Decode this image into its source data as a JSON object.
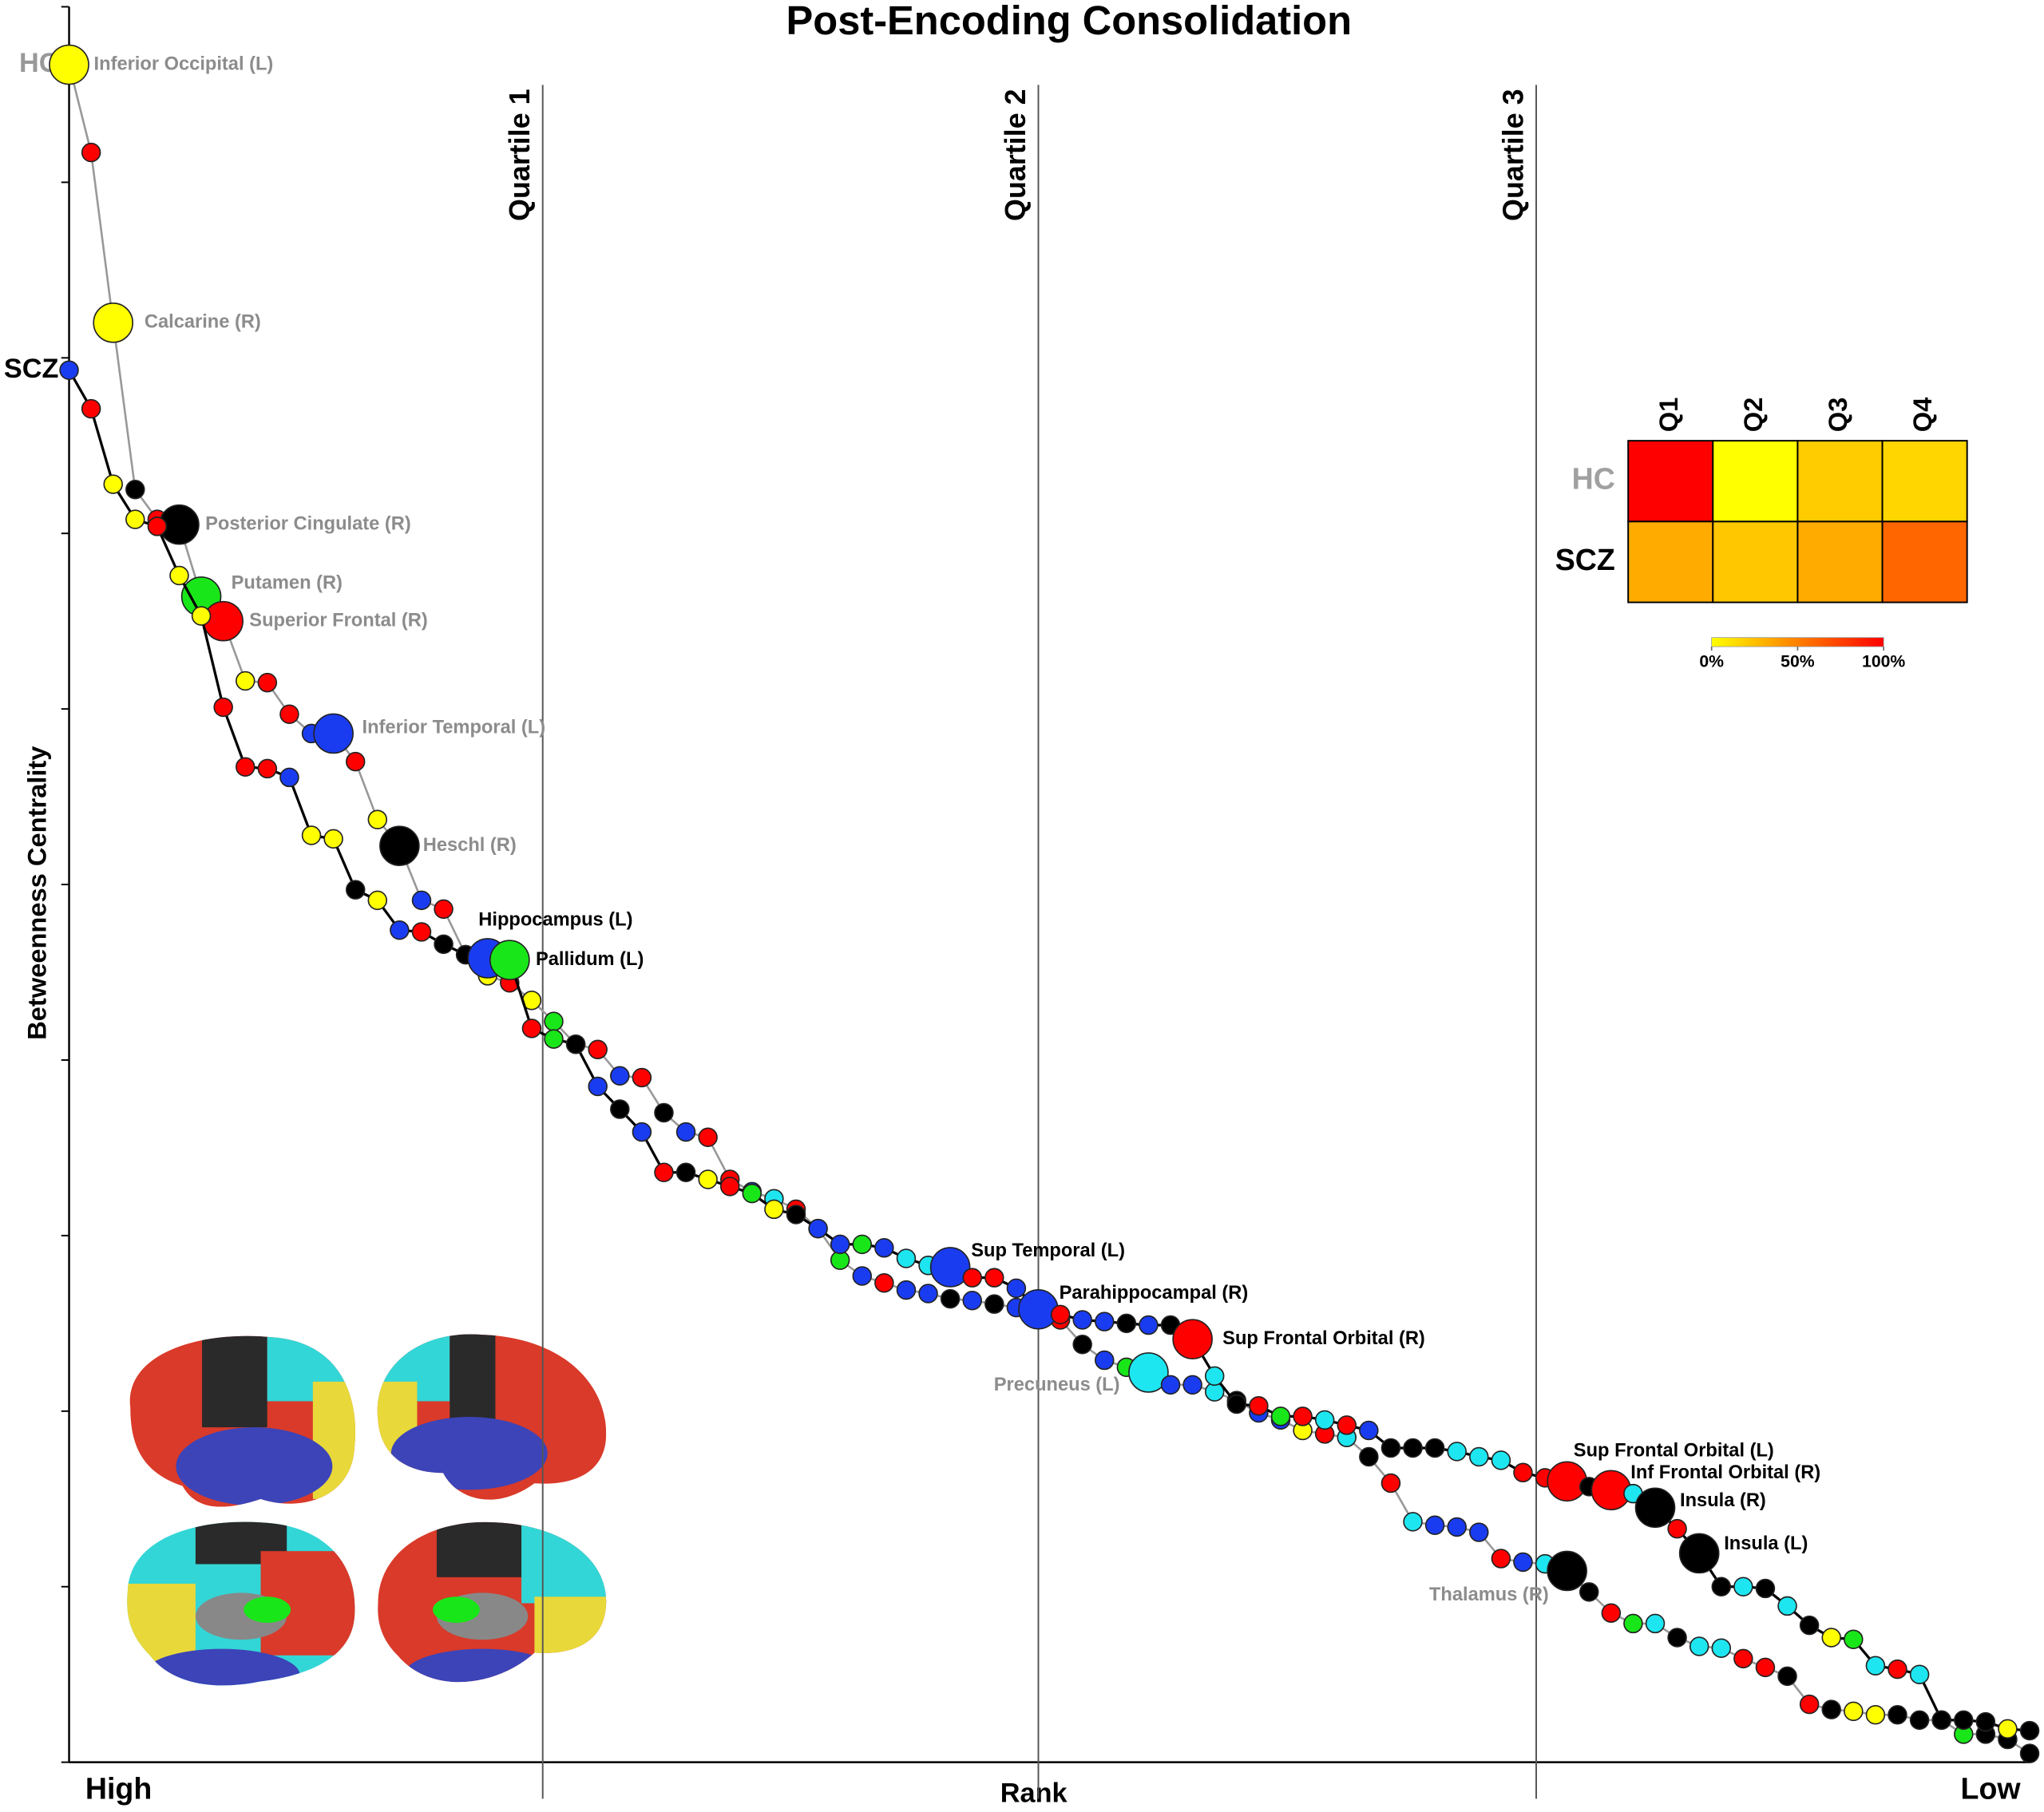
{
  "chart_data": [
    {
      "type": "line",
      "title": "Post-Encoding Consolidation",
      "y_label": "Betweenness Centrality",
      "x_label": "Rank",
      "x_start_label": "High",
      "x_end_label": "Low",
      "xlim": [
        1,
        90
      ],
      "ylim": [
        0,
        1000
      ],
      "yticks": [
        0,
        100,
        200,
        300,
        400,
        500,
        600,
        700,
        800,
        900,
        1000
      ],
      "quartiles": [
        {
          "label": "Quartile 1",
          "rank": 22.5
        },
        {
          "label": "Quartile 2",
          "rank": 45
        },
        {
          "label": "Quartile 3",
          "rank": 67.6
        }
      ],
      "series": [
        {
          "name": "HC",
          "color": "#999999",
          "values": [
            967,
            917,
            820,
            725,
            708,
            705,
            664,
            650,
            616,
            615,
            597,
            586,
            586,
            570,
            537,
            522,
            491,
            486,
            460,
            448,
            444,
            434,
            422,
            409,
            406,
            391,
            390,
            370,
            359,
            356,
            332,
            325,
            321,
            315,
            304,
            286,
            277,
            273,
            269,
            267,
            264,
            263,
            261,
            259,
            256,
            252,
            238,
            229,
            225,
            222,
            215,
            215,
            211,
            206,
            199,
            195,
            189,
            187,
            185,
            174,
            159,
            137,
            135,
            134,
            131,
            116,
            114,
            113,
            109,
            97,
            85,
            79,
            79,
            71,
            66,
            65,
            59,
            54,
            49,
            33,
            30,
            29,
            27,
            27,
            24,
            24,
            16,
            16,
            13,
            5
          ],
          "point_colors": [
            "#ffff00",
            "#ff0000",
            "#ffff00",
            "#000000",
            "#ff0000",
            "#000000",
            "#19e619",
            "#ff0000",
            "#ffff00",
            "#ff0000",
            "#ff0000",
            "#1a3cf0",
            "#1a3cf0",
            "#ff0000",
            "#ffff00",
            "#000000",
            "#1a3cf0",
            "#ff0000",
            "#000000",
            "#ffff00",
            "#ff0000",
            "#ffff00",
            "#19e619",
            "#000000",
            "#ff0000",
            "#1a3cf0",
            "#ff0000",
            "#000000",
            "#1a3cf0",
            "#ff0000",
            "#ff0000",
            "#1a3cf0",
            "#1ee6f0",
            "#ff0000",
            "#1a3cf0",
            "#19e619",
            "#1a3cf0",
            "#ff0000",
            "#1a3cf0",
            "#1a3cf0",
            "#000000",
            "#1a3cf0",
            "#000000",
            "#1a3cf0",
            "#1a3cf0",
            "#ff0000",
            "#000000",
            "#1a3cf0",
            "#19e619",
            "#1ee6f0",
            "#1a3cf0",
            "#1a3cf0",
            "#1ee6f0",
            "#000000",
            "#1a3cf0",
            "#1a3cf0",
            "#ffff00",
            "#ff0000",
            "#1ee6f0",
            "#000000",
            "#ff0000",
            "#1ee6f0",
            "#1a3cf0",
            "#1a3cf0",
            "#1a3cf0",
            "#ff0000",
            "#1a3cf0",
            "#1ee6f0",
            "#000000",
            "#000000",
            "#ff0000",
            "#19e619",
            "#1ee6f0",
            "#000000",
            "#1ee6f0",
            "#1ee6f0",
            "#ff0000",
            "#ff0000",
            "#000000",
            "#ff0000",
            "#000000",
            "#ffff00",
            "#ffff00",
            "#000000",
            "#000000",
            "#000000",
            "#19e619",
            "#000000",
            "#000000",
            "#000000"
          ],
          "labels": [
            "Inferior Occipital (L)",
            null,
            "Calcarine (R)",
            null,
            null,
            "Posterior Cingulate (R)",
            "Putamen (R)",
            "Superior Frontal (R)",
            null,
            null,
            null,
            null,
            "Inferior Temporal (L)",
            null,
            null,
            "Heschl (R)",
            null,
            null,
            null,
            null,
            null,
            null,
            null,
            null,
            null,
            null,
            null,
            null,
            null,
            null,
            null,
            null,
            null,
            null,
            null,
            null,
            null,
            null,
            null,
            null,
            null,
            null,
            null,
            null,
            null,
            null,
            null,
            null,
            null,
            "Precuneus (L)",
            null,
            null,
            null,
            null,
            null,
            null,
            null,
            null,
            null,
            null,
            null,
            null,
            null,
            null,
            null,
            null,
            null,
            null,
            "Thalamus (R)",
            null,
            null,
            null,
            null,
            null,
            null,
            null,
            null,
            null,
            null,
            null,
            null,
            null,
            null,
            null,
            null,
            null,
            null,
            null,
            null,
            null
          ]
        },
        {
          "name": "SCZ",
          "color": "#000000",
          "values": [
            793,
            771,
            728,
            708,
            704,
            676,
            653,
            601,
            567,
            566,
            561,
            528,
            526,
            497,
            491,
            474,
            473,
            466,
            460,
            458,
            457,
            418,
            412,
            409,
            385,
            372,
            359,
            336,
            336,
            332,
            328,
            324,
            315,
            312,
            304,
            295,
            295,
            293,
            287,
            283,
            282,
            276,
            276,
            270,
            258,
            255,
            252,
            251,
            250,
            249,
            249,
            241,
            220,
            204,
            203,
            197,
            197,
            195,
            192,
            189,
            179,
            179,
            179,
            177,
            174,
            172,
            165,
            162,
            160,
            157,
            155,
            153,
            145,
            133,
            119,
            100,
            100,
            99,
            89,
            78,
            71,
            70,
            55,
            53,
            50,
            24,
            24,
            23,
            19,
            18
          ],
          "point_colors": [
            "#1a3cf0",
            "#ff0000",
            "#ffff00",
            "#ffff00",
            "#ff0000",
            "#ffff00",
            "#ffff00",
            "#ff0000",
            "#ff0000",
            "#ff0000",
            "#1a3cf0",
            "#ffff00",
            "#ffff00",
            "#000000",
            "#ffff00",
            "#1a3cf0",
            "#ff0000",
            "#000000",
            "#000000",
            "#1a3cf0",
            "#19e619",
            "#ff0000",
            "#19e619",
            "#000000",
            "#1a3cf0",
            "#000000",
            "#1a3cf0",
            "#ff0000",
            "#000000",
            "#ffff00",
            "#ff0000",
            "#19e619",
            "#ffff00",
            "#000000",
            "#1a3cf0",
            "#1a3cf0",
            "#19e619",
            "#1a3cf0",
            "#1ee6f0",
            "#1ee6f0",
            "#1a3cf0",
            "#ff0000",
            "#ff0000",
            "#1a3cf0",
            "#1a3cf0",
            "#ff0000",
            "#1a3cf0",
            "#1a3cf0",
            "#000000",
            "#1a3cf0",
            "#000000",
            "#ff0000",
            "#1ee6f0",
            "#000000",
            "#ff0000",
            "#19e619",
            "#ff0000",
            "#1ee6f0",
            "#ff0000",
            "#1a3cf0",
            "#000000",
            "#000000",
            "#000000",
            "#1ee6f0",
            "#1ee6f0",
            "#1ee6f0",
            "#ff0000",
            "#ff0000",
            "#ff0000",
            "#000000",
            "#ff0000",
            "#1ee6f0",
            "#000000",
            "#ff0000",
            "#000000",
            "#000000",
            "#1ee6f0",
            "#000000",
            "#1ee6f0",
            "#000000",
            "#ffff00",
            "#19e619",
            "#1ee6f0",
            "#ff0000",
            "#1ee6f0",
            "#000000",
            "#000000",
            "#000000",
            "#ffff00",
            "#000000"
          ],
          "labels": [
            null,
            null,
            null,
            null,
            null,
            null,
            null,
            null,
            null,
            null,
            null,
            null,
            null,
            null,
            null,
            null,
            null,
            null,
            null,
            "Hippocampus (L)",
            "Pallidum (L)",
            null,
            null,
            null,
            null,
            null,
            null,
            null,
            null,
            null,
            null,
            null,
            null,
            null,
            null,
            null,
            null,
            null,
            null,
            null,
            "Sup Temporal (L)",
            null,
            null,
            null,
            "Parahippocampal (R)",
            null,
            null,
            null,
            null,
            null,
            null,
            "Sup Frontal Orbital (R)",
            null,
            null,
            null,
            null,
            null,
            null,
            null,
            null,
            null,
            null,
            null,
            null,
            null,
            null,
            null,
            null,
            "Sup Frontal Orbital (L)",
            null,
            "Inf Frontal Orbital (R)",
            null,
            "Insula (R)",
            null,
            "Insula (L)",
            null,
            null,
            null,
            null,
            null,
            null,
            null,
            null,
            null,
            null,
            null,
            null,
            null,
            null,
            null
          ]
        }
      ]
    },
    {
      "type": "heatmap",
      "columns": [
        "Q1",
        "Q2",
        "Q3",
        "Q4"
      ],
      "rows": [
        {
          "name": "HC",
          "color": "#a0a0a0"
        },
        {
          "name": "SCZ",
          "color": "#000000"
        }
      ],
      "values": [
        [
          100,
          0,
          20,
          16
        ],
        [
          33,
          22,
          33,
          60
        ]
      ],
      "range": [
        0,
        100
      ],
      "colorbar_ticks": [
        {
          "value": 0,
          "label": "0%"
        },
        {
          "value": 50,
          "label": "50%"
        },
        {
          "value": 100,
          "label": "100%"
        }
      ]
    }
  ]
}
